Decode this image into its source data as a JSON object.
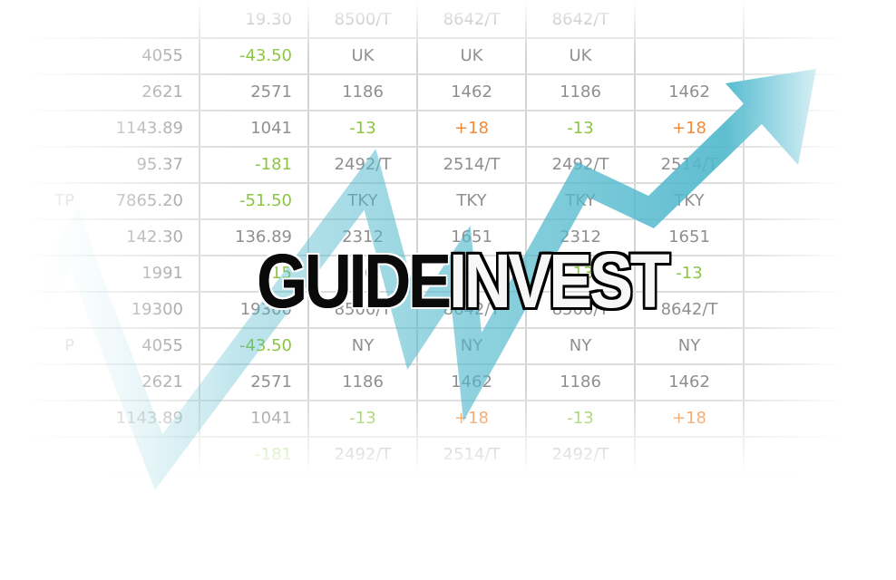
{
  "logo": {
    "part1": "GUIDE",
    "part2": "INVEST"
  },
  "colors": {
    "positive": "#8cc63f",
    "negative": "#f08a3c",
    "neutral": "#8f8f8f",
    "arrow": "#4fb8cc"
  },
  "table": {
    "rows": [
      [
        "",
        "",
        "19.30",
        "8500/T",
        "8642/T",
        "8642/T",
        ""
      ],
      [
        "",
        "4055",
        "-43.50",
        "UK",
        "UK",
        "UK",
        ""
      ],
      [
        "",
        "2621",
        "2571",
        "1186",
        "1462",
        "1186",
        "1462"
      ],
      [
        "",
        "1143.89",
        "1041",
        "-13",
        "+18",
        "-13",
        "+18"
      ],
      [
        "",
        "95.37",
        "-181",
        "2492/T",
        "2514/T",
        "2492/T",
        "2514/T"
      ],
      [
        "TP",
        "7865.20",
        "-51.50",
        "TKY",
        "TKY",
        "TKY",
        "TKY"
      ],
      [
        "",
        "142.30",
        "136.89",
        "2312",
        "1651",
        "2312",
        "1651"
      ],
      [
        "",
        "1991",
        "-15",
        "+6",
        "+13",
        "-13",
        "-13"
      ],
      [
        "",
        "19300",
        "19300",
        "8500/T",
        "8642/T",
        "8500/T",
        "8642/T"
      ],
      [
        "P",
        "4055",
        "-43.50",
        "NY",
        "NY",
        "NY",
        "NY"
      ],
      [
        "",
        "2621",
        "2571",
        "1186",
        "1462",
        "1186",
        "1462"
      ],
      [
        "",
        "1143.89",
        "1041",
        "-13",
        "+18",
        "-13",
        "+18"
      ],
      [
        "",
        "",
        "-181",
        "2492/T",
        "2514/T",
        "2492/T",
        ""
      ]
    ]
  }
}
